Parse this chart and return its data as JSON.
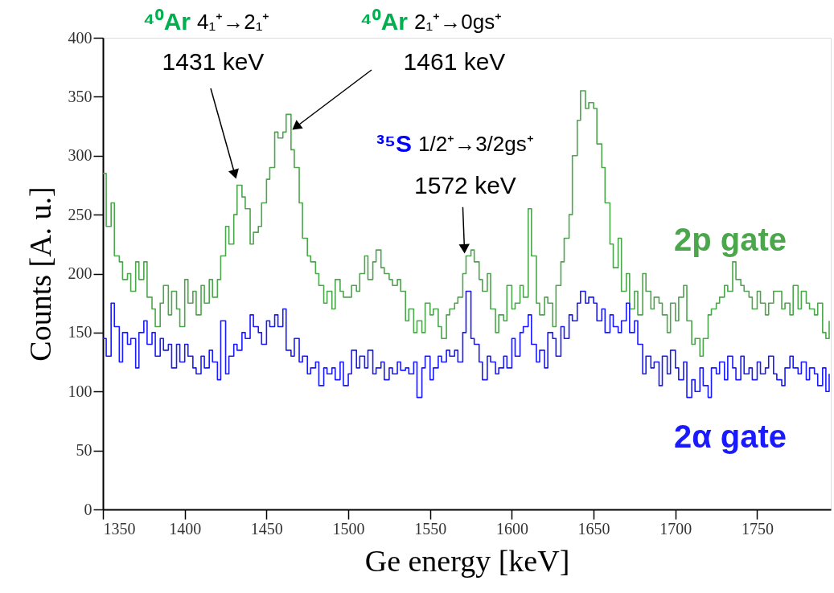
{
  "chart_data": {
    "type": "step",
    "xlabel": "Ge energy [keV]",
    "ylabel": "Counts [A. u.]",
    "xlim": [
      1350,
      1795
    ],
    "xticks": [
      1350,
      1400,
      1450,
      1500,
      1550,
      1600,
      1650,
      1700,
      1750
    ],
    "ylim": [
      0,
      400
    ],
    "yticks": [
      0,
      50,
      100,
      150,
      200,
      250,
      300,
      350,
      400
    ],
    "grid": false,
    "legend": false,
    "x": [
      1350,
      1352,
      1355,
      1357,
      1360,
      1362,
      1365,
      1367,
      1370,
      1372,
      1375,
      1377,
      1380,
      1382,
      1385,
      1387,
      1390,
      1392,
      1395,
      1397,
      1400,
      1402,
      1405,
      1407,
      1410,
      1412,
      1415,
      1417,
      1420,
      1422,
      1425,
      1427,
      1430,
      1432,
      1435,
      1437,
      1440,
      1442,
      1445,
      1447,
      1450,
      1452,
      1455,
      1457,
      1460,
      1462,
      1465,
      1467,
      1470,
      1472,
      1475,
      1477,
      1480,
      1482,
      1485,
      1487,
      1490,
      1492,
      1495,
      1497,
      1500,
      1502,
      1505,
      1507,
      1510,
      1512,
      1515,
      1517,
      1520,
      1522,
      1525,
      1527,
      1530,
      1532,
      1535,
      1537,
      1540,
      1542,
      1545,
      1547,
      1550,
      1552,
      1555,
      1557,
      1560,
      1562,
      1565,
      1567,
      1570,
      1572,
      1575,
      1577,
      1580,
      1582,
      1585,
      1587,
      1590,
      1592,
      1595,
      1597,
      1600,
      1602,
      1605,
      1607,
      1610,
      1612,
      1615,
      1617,
      1620,
      1622,
      1625,
      1627,
      1630,
      1632,
      1635,
      1637,
      1640,
      1642,
      1645,
      1647,
      1650,
      1652,
      1655,
      1657,
      1660,
      1662,
      1665,
      1667,
      1670,
      1672,
      1675,
      1677,
      1680,
      1682,
      1685,
      1687,
      1690,
      1692,
      1695,
      1697,
      1700,
      1702,
      1705,
      1707,
      1710,
      1712,
      1715,
      1717,
      1720,
      1722,
      1725,
      1727,
      1730,
      1732,
      1735,
      1737,
      1740,
      1742,
      1745,
      1747,
      1750,
      1752,
      1755,
      1757,
      1760,
      1762,
      1765,
      1767,
      1770,
      1772,
      1775,
      1777,
      1780,
      1782,
      1785,
      1787,
      1790,
      1792,
      1794
    ],
    "series": [
      {
        "name": "2p gate",
        "color": "#4ca64c",
        "values": [
          285,
          240,
          260,
          215,
          210,
          195,
          200,
          185,
          210,
          195,
          210,
          180,
          170,
          155,
          175,
          190,
          165,
          185,
          170,
          155,
          195,
          175,
          185,
          165,
          190,
          175,
          195,
          180,
          195,
          215,
          240,
          225,
          250,
          275,
          265,
          255,
          225,
          235,
          240,
          260,
          280,
          290,
          320,
          315,
          320,
          335,
          305,
          290,
          260,
          230,
          215,
          210,
          200,
          190,
          175,
          185,
          170,
          195,
          185,
          180,
          180,
          190,
          185,
          200,
          215,
          195,
          210,
          220,
          205,
          200,
          195,
          190,
          195,
          185,
          160,
          170,
          150,
          160,
          150,
          175,
          165,
          170,
          155,
          145,
          165,
          170,
          175,
          180,
          200,
          215,
          220,
          210,
          195,
          185,
          200,
          170,
          150,
          165,
          160,
          190,
          170,
          175,
          190,
          180,
          255,
          215,
          175,
          165,
          180,
          175,
          155,
          190,
          210,
          230,
          250,
          300,
          330,
          355,
          340,
          345,
          340,
          310,
          290,
          260,
          225,
          205,
          230,
          185,
          200,
          170,
          185,
          165,
          200,
          185,
          170,
          180,
          175,
          165,
          150,
          175,
          160,
          180,
          190,
          160,
          140,
          145,
          130,
          145,
          165,
          170,
          175,
          180,
          190,
          185,
          210,
          195,
          190,
          185,
          180,
          170,
          185,
          175,
          165,
          175,
          185,
          185,
          170,
          175,
          165,
          190,
          170,
          185,
          175,
          170,
          165,
          175,
          150,
          145,
          160
        ]
      },
      {
        "name": "2α gate",
        "color": "#1a1aff",
        "values": [
          145,
          130,
          175,
          155,
          125,
          150,
          140,
          145,
          120,
          150,
          160,
          140,
          150,
          130,
          145,
          135,
          140,
          120,
          140,
          125,
          140,
          130,
          120,
          115,
          130,
          120,
          135,
          125,
          110,
          160,
          115,
          130,
          140,
          135,
          150,
          145,
          165,
          155,
          150,
          140,
          160,
          155,
          165,
          155,
          170,
          135,
          130,
          145,
          125,
          130,
          115,
          120,
          125,
          105,
          120,
          115,
          120,
          110,
          125,
          105,
          115,
          135,
          120,
          130,
          120,
          135,
          115,
          120,
          125,
          110,
          120,
          115,
          125,
          118,
          120,
          115,
          125,
          95,
          120,
          130,
          110,
          120,
          130,
          125,
          135,
          130,
          135,
          125,
          150,
          185,
          145,
          140,
          125,
          110,
          130,
          125,
          115,
          120,
          130,
          120,
          145,
          130,
          150,
          155,
          165,
          140,
          125,
          135,
          120,
          150,
          145,
          130,
          155,
          145,
          165,
          160,
          175,
          185,
          175,
          180,
          175,
          160,
          170,
          150,
          165,
          155,
          150,
          160,
          175,
          150,
          160,
          140,
          115,
          130,
          120,
          125,
          105,
          130,
          115,
          135,
          120,
          110,
          125,
          95,
          110,
          100,
          120,
          105,
          95,
          120,
          115,
          125,
          110,
          130,
          120,
          110,
          130,
          115,
          120,
          110,
          125,
          115,
          120,
          130,
          115,
          110,
          105,
          120,
          130,
          120,
          115,
          125,
          110,
          120,
          115,
          105,
          120,
          100,
          115
        ]
      }
    ],
    "annotations": [
      "⁴⁰Ar 4₁⁺→2₁⁺",
      "⁴⁰Ar 2₁⁺→0gs⁺",
      "³⁵S 1/2⁺→3/2gs⁺",
      "1431 keV",
      "1461 keV",
      {
        "text": "1572 keV",
        "x": 1571,
        "y": 221
      }
    ]
  }
}
